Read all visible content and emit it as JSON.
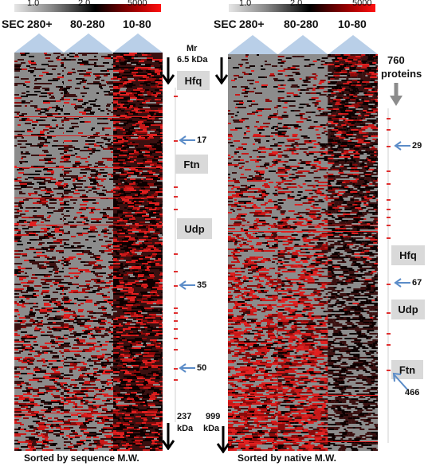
{
  "colorbar_labels": [
    "1.0",
    "2.0",
    "5000"
  ],
  "left_panel": {
    "sec_label": "SEC",
    "fractions": [
      "280+",
      "80-280",
      "10-80"
    ],
    "mr_label": "Mr",
    "top_mass": "6.5 kDa",
    "bottom_mass": "237",
    "bottom_unit": "kDa",
    "markers": [
      "17",
      "35",
      "50"
    ],
    "boxes": [
      "Hfq",
      "Ftn",
      "Udp"
    ],
    "caption": "Sorted by sequence M.W."
  },
  "right_panel": {
    "sec_label": "SEC",
    "fractions": [
      "280+",
      "80-280",
      "10-80"
    ],
    "count": "760",
    "count_unit": "proteins",
    "bottom_mass": "999",
    "bottom_unit": "kDa",
    "markers": [
      "29",
      "67",
      "466"
    ],
    "boxes": [
      "Hfq",
      "Udp",
      "Ftn"
    ],
    "caption": "Sorted by native M.W."
  },
  "colors": {
    "tick": "#e03030",
    "arrow_blue": "#5b8cc8",
    "box_bg": "#d9d9d9",
    "triangle": "#b9cfe8"
  }
}
